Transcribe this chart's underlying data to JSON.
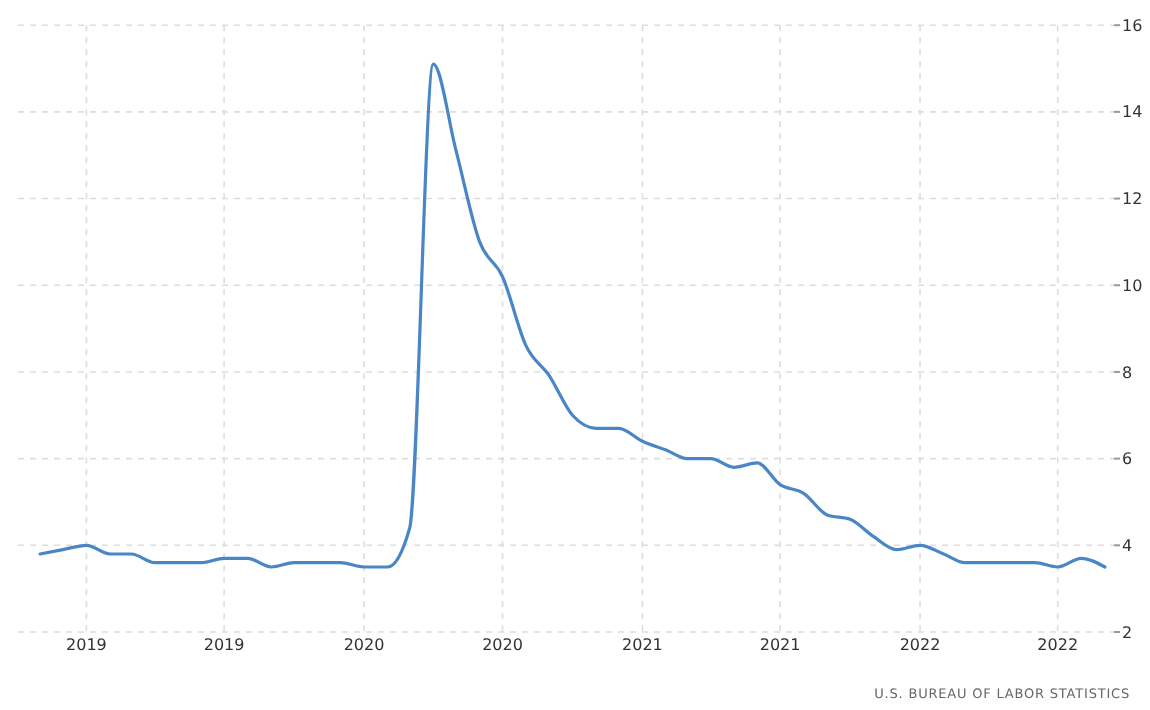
{
  "chart_data": {
    "type": "line",
    "x": [
      "2018-11",
      "2018-12",
      "2019-01",
      "2019-02",
      "2019-03",
      "2019-04",
      "2019-05",
      "2019-06",
      "2019-07",
      "2019-08",
      "2019-09",
      "2019-10",
      "2019-11",
      "2019-12",
      "2020-01",
      "2020-02",
      "2020-03",
      "2020-04",
      "2020-05",
      "2020-06",
      "2020-07",
      "2020-08",
      "2020-09",
      "2020-10",
      "2020-11",
      "2020-12",
      "2021-01",
      "2021-02",
      "2021-03",
      "2021-04",
      "2021-05",
      "2021-06",
      "2021-07",
      "2021-08",
      "2021-09",
      "2021-10",
      "2021-11",
      "2021-12",
      "2022-01",
      "2022-02",
      "2022-03",
      "2022-04",
      "2022-05",
      "2022-06",
      "2022-07",
      "2022-08",
      "2022-09"
    ],
    "series": [
      {
        "color": "#4a86c5",
        "values": [
          3.8,
          3.9,
          4.0,
          3.8,
          3.8,
          3.6,
          3.6,
          3.6,
          3.7,
          3.7,
          3.5,
          3.6,
          3.6,
          3.6,
          3.5,
          3.5,
          4.4,
          15.1,
          13.1,
          11.0,
          10.2,
          8.6,
          7.9,
          7.0,
          6.7,
          6.7,
          6.4,
          6.2,
          6.0,
          6.0,
          5.8,
          5.9,
          5.4,
          5.2,
          4.7,
          4.6,
          4.2,
          3.9,
          4.0,
          3.8,
          3.6,
          3.6,
          3.6,
          3.6,
          3.5,
          3.7,
          3.5
        ]
      }
    ],
    "xlim": [
      "2018-10-03",
      "2022-09-13"
    ],
    "xticks": [
      {
        "value": "2019-01",
        "label": "2019"
      },
      {
        "value": "2019-07",
        "label": "2019"
      },
      {
        "value": "2020-01",
        "label": "2020"
      },
      {
        "value": "2020-07",
        "label": "2020"
      },
      {
        "value": "2021-01",
        "label": "2021"
      },
      {
        "value": "2021-07",
        "label": "2021"
      },
      {
        "value": "2022-01",
        "label": "2022"
      },
      {
        "value": "2022-07",
        "label": "2022"
      }
    ],
    "ylim": [
      2,
      16
    ],
    "yticks": [
      2,
      4,
      6,
      8,
      10,
      12,
      14,
      16
    ],
    "grid": true,
    "marker": "none",
    "line_style": "solid",
    "annotations": [
      "U.S. BUREAU OF LABOR STATISTICS"
    ]
  }
}
